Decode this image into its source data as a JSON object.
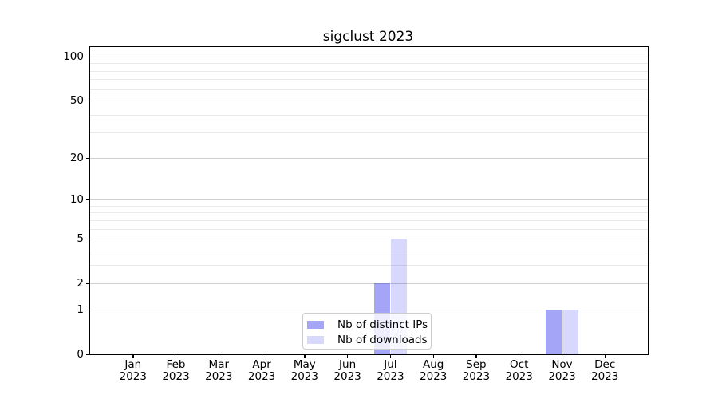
{
  "colors": {
    "major_grid": "#cfcfcf",
    "minor_grid": "#e9e9e9",
    "axis": "#000000",
    "legend_border": "#cccccc",
    "bar_distinct_ips": "rgba(10,10,235,0.37)",
    "bar_downloads": "rgba(10,10,235,0.16)"
  },
  "chart_data": {
    "type": "bar",
    "title": "sigclust 2023",
    "year": "2023",
    "categories": [
      "Jan",
      "Feb",
      "Mar",
      "Apr",
      "May",
      "Jun",
      "Jul",
      "Aug",
      "Sep",
      "Oct",
      "Nov",
      "Dec"
    ],
    "series": [
      {
        "name": "Nb of distinct IPs",
        "key": "distinct-ips",
        "color": "rgba(10,10,235,0.37)",
        "values": [
          0,
          0,
          0,
          0,
          0,
          0,
          2,
          0,
          0,
          0,
          1,
          0
        ]
      },
      {
        "name": "Nb of downloads",
        "key": "downloads",
        "color": "rgba(10,10,235,0.16)",
        "values": [
          0,
          0,
          0,
          0,
          0,
          0,
          5,
          0,
          0,
          0,
          1,
          0
        ]
      }
    ],
    "xlabel": "",
    "ylabel": "",
    "y_axis": {
      "scale": "log1p",
      "ticks": [
        0,
        1,
        2,
        5,
        10,
        20,
        50,
        100
      ],
      "minor_gridlines": [
        3,
        4,
        6,
        7,
        8,
        9,
        30,
        40,
        60,
        70,
        80,
        90
      ],
      "ylim": [
        0,
        115
      ]
    },
    "grid": true,
    "legend": {
      "position": "lower center"
    }
  }
}
